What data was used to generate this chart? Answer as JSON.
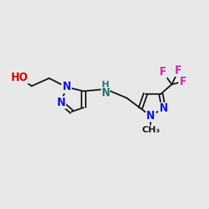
{
  "bg_color": "#e8e8e8",
  "bond_color": "#1a1a1a",
  "N_color": "#1010ee",
  "O_color": "#dd0000",
  "NH_color": "#227777",
  "F_color": "#dd22aa",
  "line_width": 1.6,
  "font_size_atom": 10.5,
  "font_size_small": 9.5,
  "figsize": [
    3.0,
    3.0
  ],
  "dpi": 100,
  "xlim": [
    0,
    10
  ],
  "ylim": [
    0,
    10
  ]
}
